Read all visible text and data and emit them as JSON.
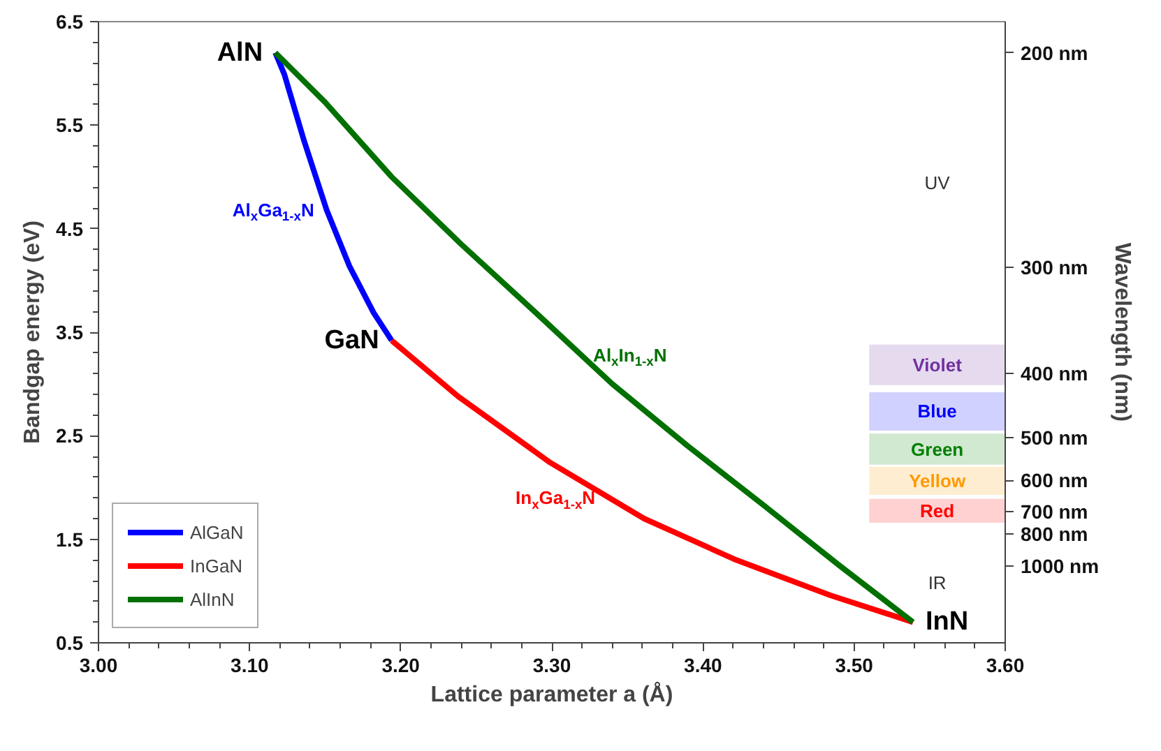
{
  "chart_data": {
    "type": "line",
    "xlabel": "Lattice parameter a (Å)",
    "ylabel": "Bandgap energy (eV)",
    "y2label": "Wavelength (nm)",
    "xlim": [
      3.0,
      3.6
    ],
    "ylim": [
      0.5,
      6.5
    ],
    "xticks": [
      {
        "value": 3.0,
        "label": "3.00"
      },
      {
        "value": 3.1,
        "label": "3.10"
      },
      {
        "value": 3.2,
        "label": "3.20"
      },
      {
        "value": 3.3,
        "label": "3.30"
      },
      {
        "value": 3.4,
        "label": "3.40"
      },
      {
        "value": 3.5,
        "label": "3.50"
      },
      {
        "value": 3.6,
        "label": "3.60"
      }
    ],
    "yticks": [
      0.5,
      1.5,
      2.5,
      3.5,
      4.5,
      5.5,
      6.5
    ],
    "ref_lines": [
      {
        "axis": "y",
        "value": 6.2,
        "label": "200 nm"
      },
      {
        "axis": "y",
        "value": 4.13,
        "label": "300 nm"
      },
      {
        "axis": "y",
        "value": 3.1,
        "label": "400 nm"
      },
      {
        "axis": "y",
        "value": 2.48,
        "label": "500 nm"
      },
      {
        "axis": "y",
        "value": 2.07,
        "label": "600 nm"
      },
      {
        "axis": "y",
        "value": 1.77,
        "label": "700 nm"
      },
      {
        "axis": "y",
        "value": 1.55,
        "label": "800 nm"
      },
      {
        "axis": "y",
        "value": 1.24,
        "label": "1000 nm"
      }
    ],
    "series": [
      {
        "name": "AlGaN",
        "color": "#0000ff",
        "x": [
          3.117,
          3.123,
          3.136,
          3.151,
          3.166,
          3.182,
          3.194
        ],
        "values": [
          6.2,
          5.99,
          5.35,
          4.68,
          4.14,
          3.69,
          3.42
        ]
      },
      {
        "name": "InGaN",
        "color": "#ff0000",
        "x": [
          3.194,
          3.238,
          3.299,
          3.361,
          3.422,
          3.484,
          3.539
        ],
        "values": [
          3.42,
          2.88,
          2.24,
          1.7,
          1.3,
          0.96,
          0.7
        ]
      },
      {
        "name": "AlInN",
        "color": "#007000",
        "x": [
          3.117,
          3.15,
          3.194,
          3.24,
          3.29,
          3.34,
          3.39,
          3.44,
          3.49,
          3.539
        ],
        "values": [
          6.2,
          5.72,
          5.0,
          4.35,
          3.68,
          3.0,
          2.4,
          1.83,
          1.25,
          0.7
        ]
      }
    ],
    "bands": [
      {
        "axis": "y",
        "from": 2.99,
        "to": 3.38,
        "label": "Violet",
        "color": "#7030a0"
      },
      {
        "axis": "y",
        "from": 2.55,
        "to": 2.92,
        "label": "Blue",
        "color": "#0000ff"
      },
      {
        "axis": "y",
        "from": 2.22,
        "to": 2.52,
        "label": "Green",
        "color": "#008000"
      },
      {
        "axis": "y",
        "from": 1.93,
        "to": 2.2,
        "label": "Yellow",
        "color": "#ff9900"
      },
      {
        "axis": "y",
        "from": 1.66,
        "to": 1.89,
        "label": "Red",
        "color": "#ff0000"
      }
    ],
    "annotations": [
      {
        "text": "AlN",
        "x": 3.117,
        "y": 6.2
      },
      {
        "text": "GaN",
        "x": 3.194,
        "y": 3.42
      },
      {
        "text": "InN",
        "x": 3.539,
        "y": 0.7
      },
      {
        "text": "Al$_{x}$Ga$_{1-x}$N",
        "x": 3.151,
        "y": 4.68
      },
      {
        "text": "Al$_{x}$In$_{1-x}$N",
        "x": 3.319,
        "y": 3.28
      },
      {
        "text": "In$_{x}$Ga$_{1-x}$N",
        "x": 3.337,
        "y": 1.9
      },
      "UV",
      "IR"
    ],
    "grid": false,
    "legend": "bottom left"
  }
}
